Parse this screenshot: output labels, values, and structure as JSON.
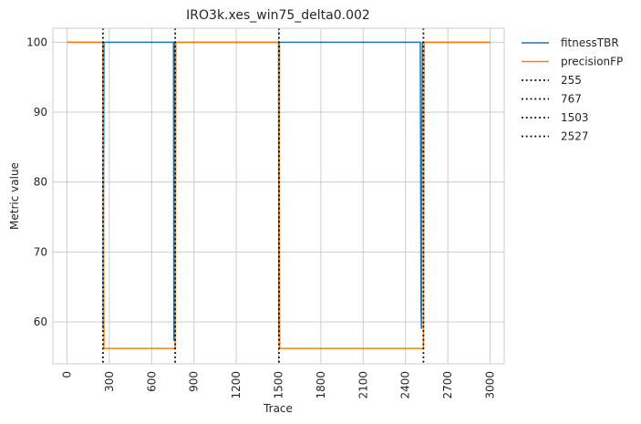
{
  "chart_data": {
    "type": "line",
    "title": "IRO3k.xes_win75_delta0.002",
    "xlabel": "Trace",
    "ylabel": "Metric value",
    "xlim": [
      -100,
      3100
    ],
    "ylim": [
      54,
      102
    ],
    "xticks": [
      0,
      300,
      600,
      900,
      1200,
      1500,
      1800,
      2100,
      2400,
      2700,
      3000
    ],
    "yticks": [
      60,
      70,
      80,
      90,
      100
    ],
    "grid": true,
    "legend_position": "outside-top-right",
    "series": [
      {
        "name": "fitnessTBR",
        "color": "#1f77b4",
        "points": [
          [
            0,
            100
          ],
          [
            255,
            100
          ],
          [
            257,
            59
          ],
          [
            262,
            100
          ],
          [
            755,
            100
          ],
          [
            758,
            57.3
          ],
          [
            762,
            100
          ],
          [
            767,
            100
          ],
          [
            1500,
            100
          ],
          [
            1503,
            58
          ],
          [
            1506,
            100
          ],
          [
            2505,
            100
          ],
          [
            2510,
            62
          ],
          [
            2513,
            59
          ],
          [
            2516,
            85
          ],
          [
            2520,
            100
          ],
          [
            2527,
            100
          ],
          [
            3000,
            100
          ]
        ]
      },
      {
        "name": "precisionFP",
        "color": "#ff7f0e",
        "points": [
          [
            0,
            100
          ],
          [
            255,
            100
          ],
          [
            262,
            56.2
          ],
          [
            767,
            56.2
          ],
          [
            772,
            100
          ],
          [
            1503,
            100
          ],
          [
            1508,
            56.2
          ],
          [
            2527,
            56.2
          ],
          [
            2532,
            100
          ],
          [
            3000,
            100
          ]
        ]
      }
    ],
    "vlines": [
      {
        "name": "255",
        "x": 255,
        "color": "#000000"
      },
      {
        "name": "767",
        "x": 767,
        "color": "#000000"
      },
      {
        "name": "1503",
        "x": 1503,
        "color": "#000000"
      },
      {
        "name": "2527",
        "x": 2527,
        "color": "#000000"
      }
    ]
  }
}
